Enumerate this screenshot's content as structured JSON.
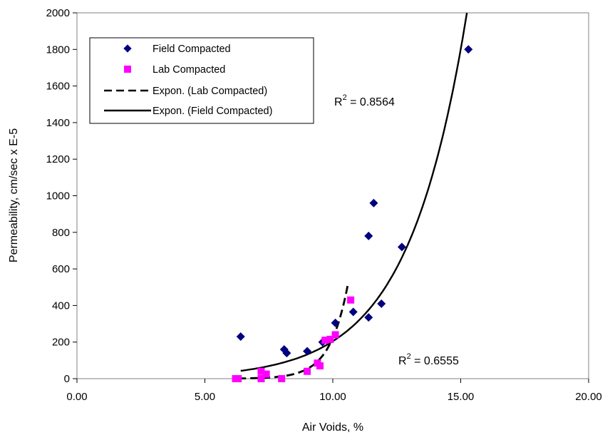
{
  "chart_data": {
    "type": "scatter",
    "xlabel": "Air Voids, %",
    "ylabel": "Permeability, cm/sec x E-5",
    "xlim": [
      0,
      20
    ],
    "ylim": [
      0,
      2000
    ],
    "x_ticks": [
      "0.00",
      "5.00",
      "10.00",
      "15.00",
      "20.00"
    ],
    "y_ticks": [
      "0",
      "200",
      "400",
      "600",
      "800",
      "1000",
      "1200",
      "1400",
      "1600",
      "1800",
      "2000"
    ],
    "grid": false,
    "legend_position": "top-left",
    "series": [
      {
        "name": "Field Compacted",
        "marker": "diamond",
        "color": "#000080",
        "points": [
          [
            6.4,
            230
          ],
          [
            8.1,
            160
          ],
          [
            8.2,
            140
          ],
          [
            9.0,
            150
          ],
          [
            9.6,
            200
          ],
          [
            10.1,
            305
          ],
          [
            10.8,
            365
          ],
          [
            11.4,
            780
          ],
          [
            11.6,
            960
          ],
          [
            11.4,
            335
          ],
          [
            11.9,
            410
          ],
          [
            12.7,
            720
          ],
          [
            15.3,
            1800
          ]
        ]
      },
      {
        "name": "Lab Compacted",
        "marker": "square",
        "color": "#ff00ff",
        "points": [
          [
            6.2,
            0
          ],
          [
            6.3,
            0
          ],
          [
            7.2,
            40
          ],
          [
            7.4,
            25
          ],
          [
            7.2,
            0
          ],
          [
            8.0,
            0
          ],
          [
            9.0,
            40
          ],
          [
            9.4,
            85
          ],
          [
            9.5,
            70
          ],
          [
            9.7,
            210
          ],
          [
            9.9,
            215
          ],
          [
            10.1,
            240
          ],
          [
            10.7,
            430
          ]
        ]
      },
      {
        "name": "Expon. (Lab Compacted)",
        "line_style": "dashed",
        "color": "#000000",
        "r2_label": "R",
        "r2_exp": "2",
        "r2_value": " = 0.6555",
        "x_range": [
          6.3,
          10.6
        ],
        "fit": {
          "a": 0.000137,
          "b": 1.43
        }
      },
      {
        "name": "Expon. (Field Compacted)",
        "line_style": "solid",
        "color": "#000000",
        "r2_label": "R",
        "r2_exp": "2",
        "r2_value": " = 0.8564",
        "x_range": [
          6.4,
          15.3
        ],
        "fit": {
          "a": 2.64,
          "b": 0.435
        }
      }
    ]
  }
}
